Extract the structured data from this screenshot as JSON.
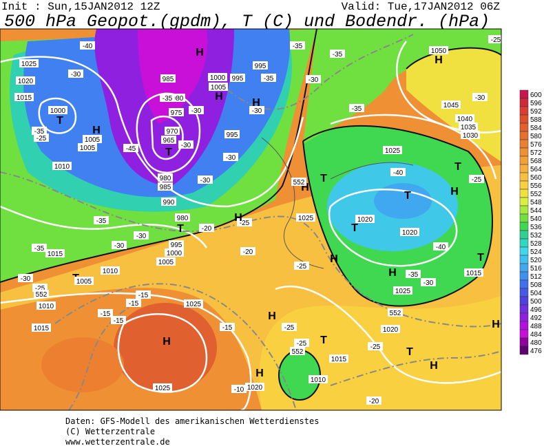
{
  "header": {
    "init": "Init : Sun,15JAN2012 12Z",
    "valid": "Valid: Tue,17JAN2012 06Z",
    "title": "500 hPa Geopot.(gpdm), T (C) und Bodendr. (hPa)"
  },
  "map": {
    "labels": [
      "H",
      "H",
      "1050",
      "1025",
      "1020",
      "1015",
      "1000",
      "T",
      "H",
      "1005",
      "1005",
      "1010",
      "-35",
      "-25",
      "-40",
      "-30",
      "-45",
      "985",
      "980",
      "975",
      "970",
      "965",
      "T",
      "980",
      "985",
      "990",
      "-35",
      "-30",
      "-30",
      "-30",
      "-30",
      "1000",
      "1005",
      "H",
      "995",
      "995",
      "H",
      "-30",
      "-35",
      "-35",
      "-30",
      "-35",
      "-35",
      "995",
      "T",
      "980",
      "-20",
      "-25",
      "-20",
      "1025",
      "H",
      "T",
      "H",
      "995",
      "1000",
      "1005",
      "-35",
      "-30",
      "-30",
      "-35",
      "1015",
      "1010",
      "T",
      "1005",
      "-30",
      "-25",
      "1010",
      "1015",
      "-15",
      "-15",
      "-15",
      "-15",
      "1025",
      "H",
      "-15",
      "1025",
      "-10",
      "1020",
      "H",
      "H",
      "-25",
      "-25",
      "-25",
      "T",
      "1015",
      "1010",
      "-20",
      "-25",
      "T",
      "H",
      "1020",
      "H",
      "1025",
      "H",
      "-35",
      "-30",
      "1015",
      "T",
      "1020",
      "T",
      "1020",
      "-40",
      "T",
      "-40",
      "H",
      "T",
      "-25",
      "1025",
      "H",
      "1045",
      "1040",
      "1035",
      "1030",
      "-30",
      "-25",
      "552",
      "552",
      "552",
      "552"
    ]
  },
  "color_scale": {
    "values": [
      600,
      596,
      592,
      588,
      584,
      580,
      576,
      572,
      568,
      564,
      560,
      556,
      552,
      548,
      544,
      540,
      536,
      532,
      528,
      524,
      520,
      516,
      512,
      508,
      504,
      500,
      496,
      492,
      488,
      484,
      480,
      476
    ],
    "colors": [
      "#c8144f",
      "#d2283c",
      "#dc3c32",
      "#e05028",
      "#e4602a",
      "#e8702c",
      "#ec8030",
      "#f09034",
      "#f4a038",
      "#f8b03c",
      "#f8c040",
      "#f8d040",
      "#f0e040",
      "#d8f040",
      "#a8e840",
      "#70e040",
      "#40d850",
      "#30d090",
      "#30d8c0",
      "#40d8e8",
      "#40c0f0",
      "#40a8f0",
      "#4090f0",
      "#4070f0",
      "#4858e8",
      "#5040e0",
      "#7030e0",
      "#9020e0",
      "#b010e0",
      "#c810d8",
      "#9000a0",
      "#600070"
    ]
  },
  "footer": {
    "lines": [
      "Daten: GFS-Modell des amerikanischen Wetterdienstes",
      "(C) Wetterzentrale",
      "www.wetterzentrale.de"
    ]
  }
}
